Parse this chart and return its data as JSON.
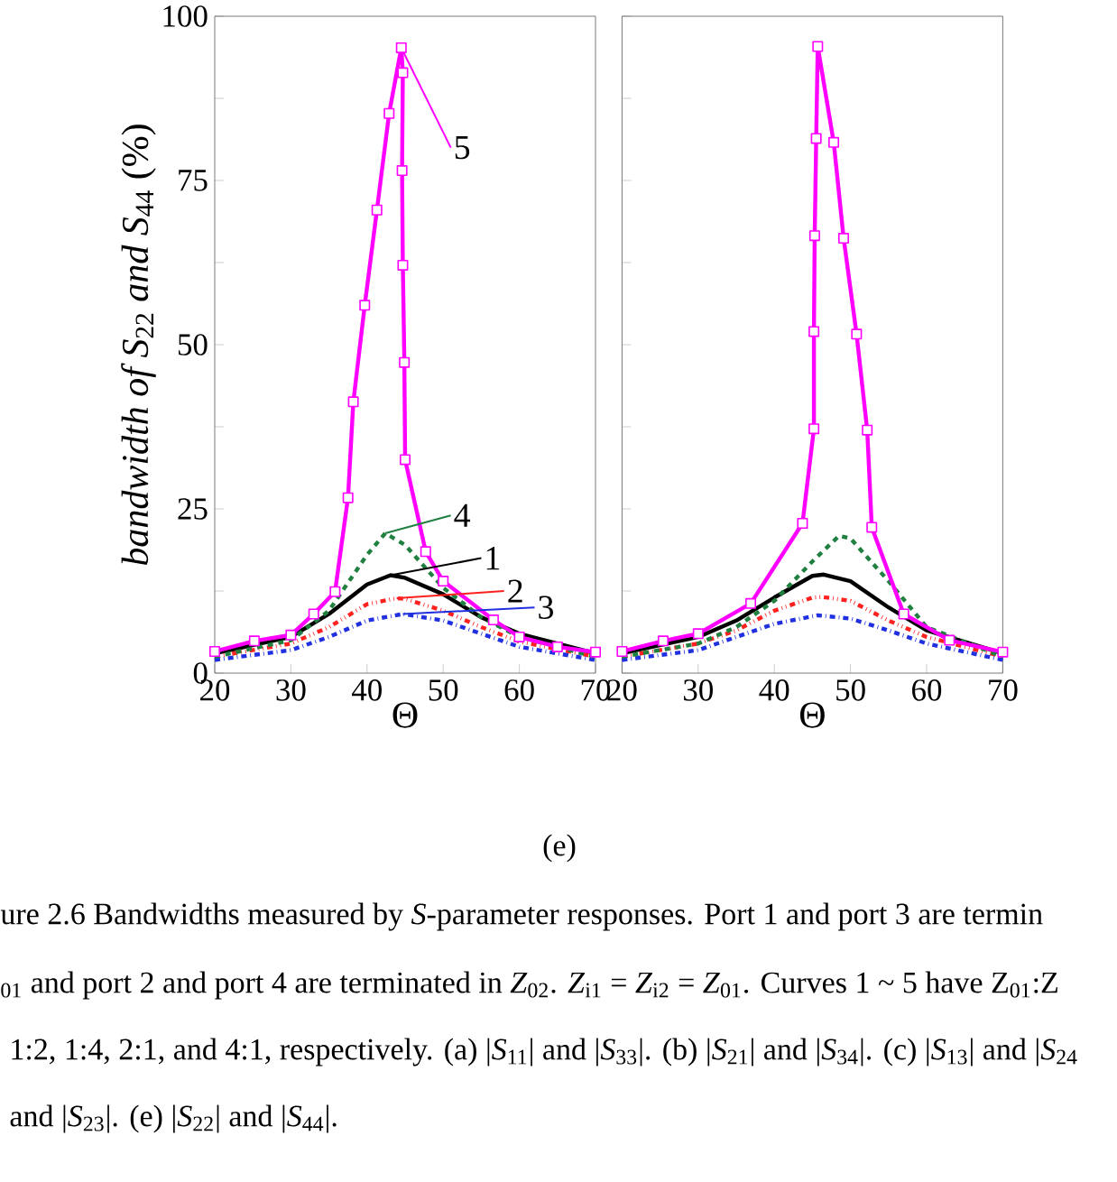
{
  "chart_data": [
    {
      "type": "line",
      "legend": "right",
      "ylabel": "*bandwidth of S*$_{22}$ *and S*$_{44}$ (%)",
      "xlabel": "Θ",
      "xlim": [
        20,
        70
      ],
      "ylim": [
        0,
        100
      ],
      "xticks": [
        20,
        30,
        40,
        50,
        60,
        70
      ],
      "yticks": [
        0,
        {
          "value": 12.5,
          "label": null
        },
        25,
        {
          "value": 37.5,
          "label": null
        },
        50,
        {
          "value": 62.5,
          "label": null
        },
        75,
        {
          "value": 87.5,
          "label": null
        },
        100
      ],
      "series": [
        {
          "name": "1",
          "color": "#000000",
          "line_style": "solid",
          "marker": "none",
          "x": [
            20,
            30,
            35,
            40,
            43.1,
            45,
            50,
            55,
            60,
            70
          ],
          "values": [
            3,
            5.5,
            9,
            13.5,
            14.9,
            14.5,
            12,
            8.5,
            6,
            3
          ]
        },
        {
          "name": "2",
          "color": "#ff2020",
          "line_style": "dashdotdot",
          "marker": "none",
          "x": [
            20,
            30,
            35,
            40,
            43.9,
            45,
            50,
            55,
            60,
            70
          ],
          "values": [
            2.5,
            4.5,
            7,
            10.5,
            11.4,
            11.3,
            9.5,
            7,
            4.8,
            2.5
          ]
        },
        {
          "name": "3",
          "color": "#2030e0",
          "line_style": "dashdot",
          "marker": "none",
          "x": [
            20,
            30,
            35,
            40,
            44.7,
            50,
            55,
            60,
            70
          ],
          "values": [
            2,
            3.5,
            5.5,
            8,
            9,
            8,
            6,
            4,
            2
          ]
        },
        {
          "name": "4",
          "color": "#208040",
          "line_style": "dashed",
          "marker": "none",
          "x": [
            20,
            30,
            35,
            40,
            42.4,
            45,
            50,
            55,
            60,
            70
          ],
          "values": [
            2.5,
            5,
            9.5,
            18,
            21.3,
            19.5,
            13,
            8.5,
            5.5,
            2.5
          ]
        },
        {
          "name": "5",
          "color": "#ff00ff",
          "line_style": "solid",
          "marker": "square",
          "x": [
            20,
            25.2,
            30,
            33,
            35.8,
            37.5,
            38.2,
            39.7,
            41.3,
            42.9,
            44.5,
            44.7,
            44.6,
            44.7,
            44.9,
            45.0,
            47.7,
            50,
            56.6,
            60,
            65,
            70
          ],
          "values": [
            3.3,
            4.9,
            5.8,
            9,
            12.4,
            26.7,
            41.3,
            56.0,
            70.5,
            85.2,
            95.2,
            91.4,
            76.5,
            62.1,
            47.3,
            32.5,
            18.5,
            14,
            8.1,
            5.5,
            4,
            3.2
          ]
        }
      ],
      "annotations": [
        "(e)",
        "ure 2.6 Bandwidths measured by *S*-parameter responses. Port 1 and port 3 are termin",
        "$_{01}$ and port 2 and port 4 are terminated in *Z*$_{02}$. *Z*$_{i1}$ = *Z*$_{i2}$ = *Z*$_{01}$. Curves 1 ~ 5 have Z$_{01}$:Z",
        "1:2, 1:4, 2:1, and 4:1, respectively. (a) |*S*$_{11}$| and |*S*$_{33}$|. (b) |*S*$_{21}$| and |*S*$_{34}$|. (c) |*S*$_{13}$| and |*S*$_{24}$",
        "and |*S*$_{23}$|. (e) |*S*$_{22}$| and |*S*$_{44}$|."
      ]
    },
    {
      "type": "line",
      "xlabel": "Θ",
      "xlim": [
        20,
        70
      ],
      "ylim": [
        0,
        100
      ],
      "tick_labels": "x",
      "xticks": [
        20,
        30,
        40,
        50,
        60,
        70
      ],
      "yticks": [
        {
          "value": 0,
          "label": null
        },
        {
          "value": 12.5,
          "label": null
        },
        {
          "value": 25,
          "label": null
        },
        {
          "value": 37.5,
          "label": null
        },
        {
          "value": 50,
          "label": null
        },
        {
          "value": 62.5,
          "label": null
        },
        {
          "value": 75,
          "label": null
        },
        {
          "value": 87.5,
          "label": null
        },
        {
          "value": 100,
          "label": null
        }
      ],
      "series": [
        {
          "color": "#000000",
          "line_style": "solid",
          "marker": "none",
          "x": [
            20,
            30,
            35,
            40,
            45,
            46.5,
            50,
            55,
            60,
            70
          ],
          "values": [
            3,
            5.5,
            8,
            11.5,
            14.8,
            15,
            14,
            10,
            6.5,
            3
          ]
        },
        {
          "color": "#ff2020",
          "line_style": "dashdotdot",
          "marker": "none",
          "x": [
            20,
            30,
            35,
            40,
            45,
            46.3,
            50,
            55,
            60,
            70
          ],
          "values": [
            2.5,
            4.5,
            6.5,
            9.5,
            11.5,
            11.6,
            11,
            8,
            5.5,
            2.5
          ]
        },
        {
          "color": "#2030e0",
          "line_style": "dashdot",
          "marker": "none",
          "x": [
            20,
            30,
            35,
            40,
            45.7,
            50,
            55,
            60,
            70
          ],
          "values": [
            2,
            3.5,
            5.5,
            7.5,
            8.8,
            8.3,
            6.5,
            4.5,
            2
          ]
        },
        {
          "color": "#208040",
          "line_style": "dashed",
          "marker": "none",
          "x": [
            20,
            30,
            35,
            40,
            45,
            48.5,
            50,
            55,
            60,
            70
          ],
          "values": [
            2.5,
            4.5,
            7,
            11,
            17,
            20.9,
            20.5,
            14,
            7,
            2.5
          ]
        },
        {
          "color": "#ff00ff",
          "line_style": "solid",
          "marker": "square",
          "x": [
            20,
            25.4,
            30,
            36.9,
            43.7,
            45.2,
            45.2,
            45.3,
            45.5,
            45.7,
            47.8,
            49.1,
            50.8,
            52.2,
            52.8,
            57.0,
            63,
            70
          ],
          "values": [
            3.3,
            4.9,
            6,
            10.6,
            22.8,
            37.2,
            52.0,
            66.6,
            81.4,
            95.4,
            80.8,
            66.2,
            51.6,
            37.0,
            22.2,
            9.0,
            5,
            3.2
          ]
        }
      ]
    }
  ]
}
